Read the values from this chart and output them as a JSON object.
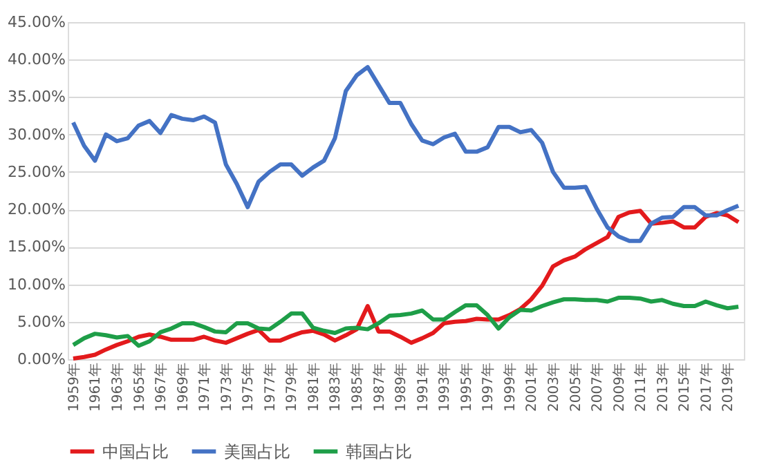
{
  "chart_data": {
    "type": "line",
    "categories": [
      "1959年",
      null,
      "1961年",
      null,
      "1963年",
      null,
      "1965年",
      null,
      "1967年",
      null,
      "1969年",
      null,
      "1971年",
      null,
      "1973年",
      null,
      "1975年",
      null,
      "1977年",
      null,
      "1979年",
      null,
      "1981年",
      null,
      "1983年",
      null,
      "1985年",
      null,
      "1987年",
      null,
      "1989年",
      null,
      "1991年",
      null,
      "1993年",
      null,
      "1995年",
      null,
      "1997年",
      null,
      "1999年",
      null,
      "2001年",
      null,
      "2003年",
      null,
      "2005年",
      null,
      "2007年",
      null,
      "2009年",
      null,
      "2011年",
      null,
      "2013年",
      null,
      "2015年",
      null,
      "2017年",
      null,
      "2019年",
      null
    ],
    "series": [
      {
        "name": "中国占比",
        "color": "#e31a1c",
        "values": [
          0.1,
          0.3,
          0.6,
          1.3,
          1.9,
          2.4,
          3.0,
          3.3,
          3.0,
          2.6,
          2.6,
          2.6,
          3.0,
          2.5,
          2.2,
          2.8,
          3.4,
          3.9,
          2.5,
          2.5,
          3.1,
          3.6,
          3.8,
          3.3,
          2.5,
          3.2,
          4.0,
          7.1,
          3.7,
          3.7,
          3.0,
          2.2,
          2.8,
          3.5,
          4.8,
          5.0,
          5.1,
          5.4,
          5.3,
          5.3,
          5.9,
          6.7,
          8.0,
          9.8,
          12.4,
          13.2,
          13.7,
          14.7,
          15.5,
          16.3,
          19.0,
          19.6,
          19.8,
          18.1,
          18.2,
          18.4,
          17.6,
          17.6,
          19.0,
          19.5,
          19.2,
          18.3
        ]
      },
      {
        "name": "美国占比",
        "color": "#4472c4",
        "values": [
          31.6,
          28.5,
          26.5,
          30.0,
          29.1,
          29.5,
          31.2,
          31.8,
          30.2,
          32.6,
          32.1,
          31.9,
          32.4,
          31.6,
          26.0,
          23.4,
          20.3,
          23.7,
          25.0,
          26.0,
          26.0,
          24.5,
          25.6,
          26.5,
          29.5,
          35.8,
          37.9,
          39.0,
          36.6,
          34.2,
          34.2,
          31.4,
          29.2,
          28.7,
          29.6,
          30.1,
          27.7,
          27.7,
          28.3,
          31.0,
          31.0,
          30.3,
          30.6,
          28.9,
          25.0,
          22.9,
          22.9,
          23.0,
          20.1,
          17.6,
          16.4,
          15.8,
          15.8,
          18.1,
          18.9,
          19.0,
          20.3,
          20.3,
          19.2,
          19.2,
          19.9,
          20.5
        ]
      },
      {
        "name": "韩国占比",
        "color": "#1e9e48",
        "values": [
          1.9,
          2.8,
          3.4,
          3.2,
          2.9,
          3.1,
          1.8,
          2.4,
          3.6,
          4.1,
          4.8,
          4.8,
          4.3,
          3.7,
          3.6,
          4.8,
          4.8,
          4.1,
          4.0,
          5.0,
          6.1,
          6.1,
          4.2,
          3.8,
          3.5,
          4.1,
          4.2,
          4.0,
          4.8,
          5.8,
          5.9,
          6.1,
          6.5,
          5.3,
          5.3,
          6.3,
          7.2,
          7.2,
          5.9,
          4.1,
          5.6,
          6.6,
          6.5,
          7.1,
          7.6,
          8.0,
          8.0,
          7.9,
          7.9,
          7.7,
          8.2,
          8.2,
          8.1,
          7.7,
          7.9,
          7.4,
          7.1,
          7.1,
          7.7,
          7.2,
          6.8,
          7.0
        ]
      }
    ],
    "ylim": [
      0,
      45
    ],
    "yticks": [
      {
        "value": 0,
        "label": "0.00%"
      },
      {
        "value": 5,
        "label": "5.00%"
      },
      {
        "value": 10,
        "label": "10.00%"
      },
      {
        "value": 15,
        "label": "15.00%"
      },
      {
        "value": 20,
        "label": "20.00%"
      },
      {
        "value": 25,
        "label": "25.00%"
      },
      {
        "value": 30,
        "label": "30.00%"
      },
      {
        "value": 35,
        "label": "35.00%"
      },
      {
        "value": 40,
        "label": "40.00%"
      },
      {
        "value": 45,
        "label": "45.00%"
      }
    ],
    "grid": "y",
    "legend": "bottom",
    "marker": "none",
    "line_style": "solid"
  }
}
